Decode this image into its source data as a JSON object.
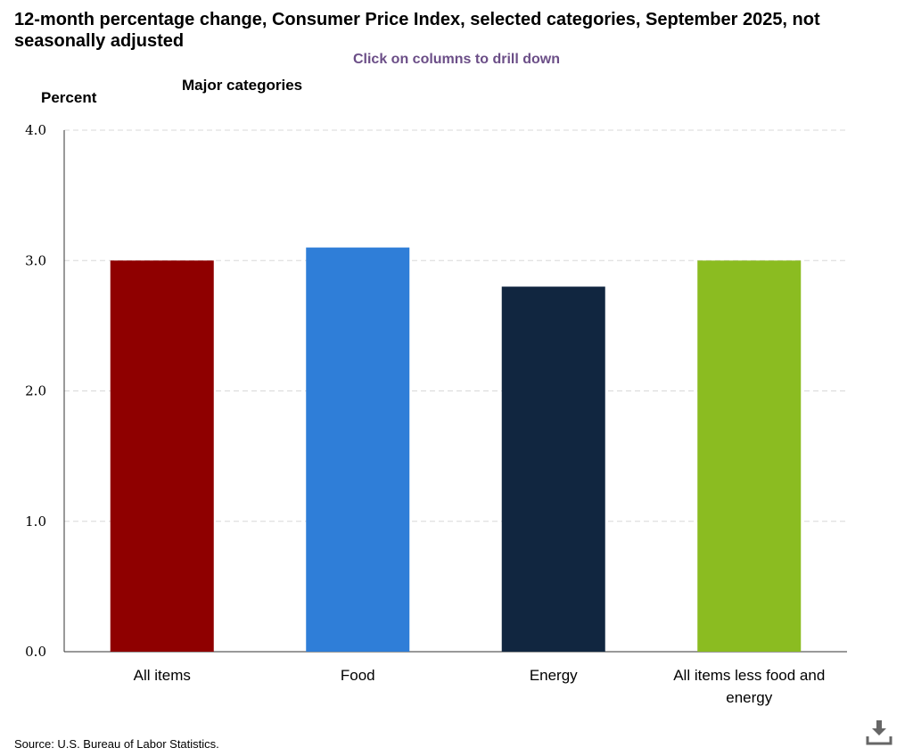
{
  "header": {
    "title": "12-month percentage change, Consumer Price Index, selected categories, September 2025, not seasonally adjusted",
    "drill_hint": "Click on columns to drill down",
    "y_unit_label": "Percent",
    "section_label": "Major categories"
  },
  "footer": {
    "source": "Source: U.S. Bureau of Labor Statistics."
  },
  "icons": {
    "download": "download-icon"
  },
  "chart_data": {
    "type": "bar",
    "title": "12-month percentage change, Consumer Price Index, selected categories, September 2025, not seasonally adjusted",
    "categories": [
      "All items",
      "Food",
      "Energy",
      "All items less food and energy"
    ],
    "values": [
      3.0,
      3.1,
      2.8,
      3.0
    ],
    "colors": [
      "#8f0000",
      "#2f7ed8",
      "#112640",
      "#8bbc21"
    ],
    "ylabel": "Percent",
    "xlabel": "",
    "ylim": [
      0,
      4
    ],
    "yticks": [
      "0.0",
      "1.0",
      "2.0",
      "3.0",
      "4.0"
    ],
    "grid": true
  }
}
